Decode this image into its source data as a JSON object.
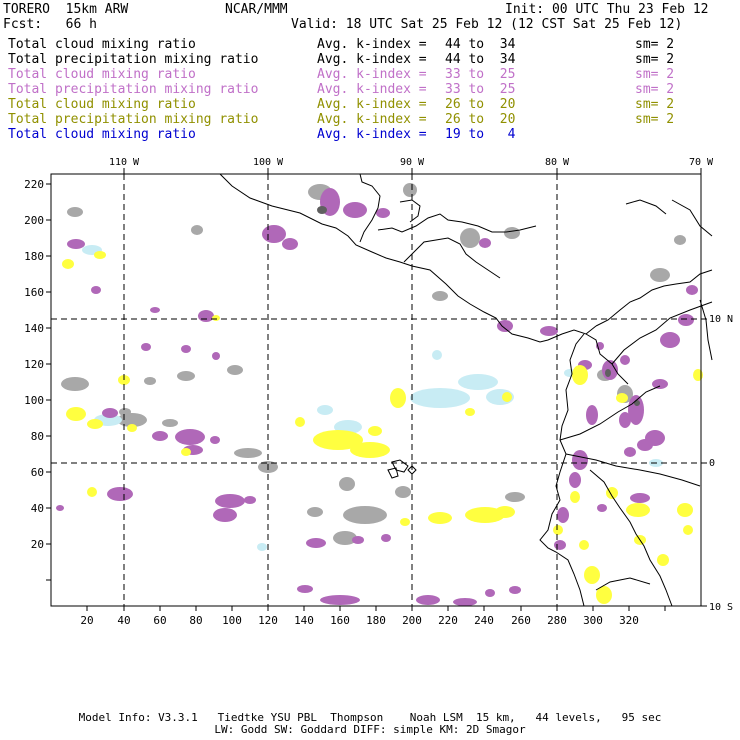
{
  "header": {
    "model": "TORERO  15km ARW",
    "org": "NCAR/MMM",
    "init": "Init: 00 UTC Thu 23 Feb 12",
    "fcst": "Fcst:   66 h",
    "valid": "Valid: 18 UTC Sat 25 Feb 12 (12 CST Sat 25 Feb 12)"
  },
  "legend": [
    {
      "field": "Total cloud mixing ratio",
      "kindex": "Avg. k-index = ",
      "range": "44 to  34",
      "sm": "sm= 2",
      "color": "#000000"
    },
    {
      "field": "Total precipitation mixing ratio",
      "kindex": "Avg. k-index = ",
      "range": "44 to  34",
      "sm": "sm= 2",
      "color": "#000000"
    },
    {
      "field": "Total cloud mixing ratio",
      "kindex": "Avg. k-index = ",
      "range": "33 to  25",
      "sm": "sm= 2",
      "color": "#c070c8"
    },
    {
      "field": "Total precipitation mixing ratio",
      "kindex": "Avg. k-index = ",
      "range": "33 to  25",
      "sm": "sm= 2",
      "color": "#c070c8"
    },
    {
      "field": "Total cloud mixing ratio",
      "kindex": "Avg. k-index = ",
      "range": "26 to  20",
      "sm": "sm= 2",
      "color": "#909000"
    },
    {
      "field": "Total precipitation mixing ratio",
      "kindex": "Avg. k-index = ",
      "range": "26 to  20",
      "sm": "sm= 2",
      "color": "#909000"
    },
    {
      "field": "Total cloud mixing ratio",
      "kindex": "Avg. k-index = ",
      "range": "19 to   4",
      "sm": "",
      "color": "#0000d0"
    }
  ],
  "map": {
    "lon_labels": [
      "110 W",
      "100 W",
      "90 W",
      "80 W",
      "70 W"
    ],
    "lat_labels": [
      "10 N",
      "0",
      "10 S"
    ],
    "x_ticks": [
      "20",
      "40",
      "60",
      "80",
      "100",
      "120",
      "140",
      "160",
      "180",
      "200",
      "220",
      "240",
      "260",
      "280",
      "300",
      "320"
    ],
    "y_ticks": [
      "220",
      "200",
      "180",
      "160",
      "140",
      "120",
      "100",
      "80",
      "60",
      "40",
      "20"
    ],
    "colors": {
      "grey": "#a8a8a8",
      "purple": "#b068b8",
      "yellow": "#ffff40",
      "cyan": "#c8ecf4",
      "darkgrey": "#606060"
    }
  },
  "footer": {
    "line1": "Model Info: V3.3.1   Tiedtke YSU PBL  Thompson    Noah LSM  15 km,   44 levels,   95 sec",
    "line2": "LW: Godd SW: Goddard DIFF: simple KM: 2D Smagor"
  }
}
